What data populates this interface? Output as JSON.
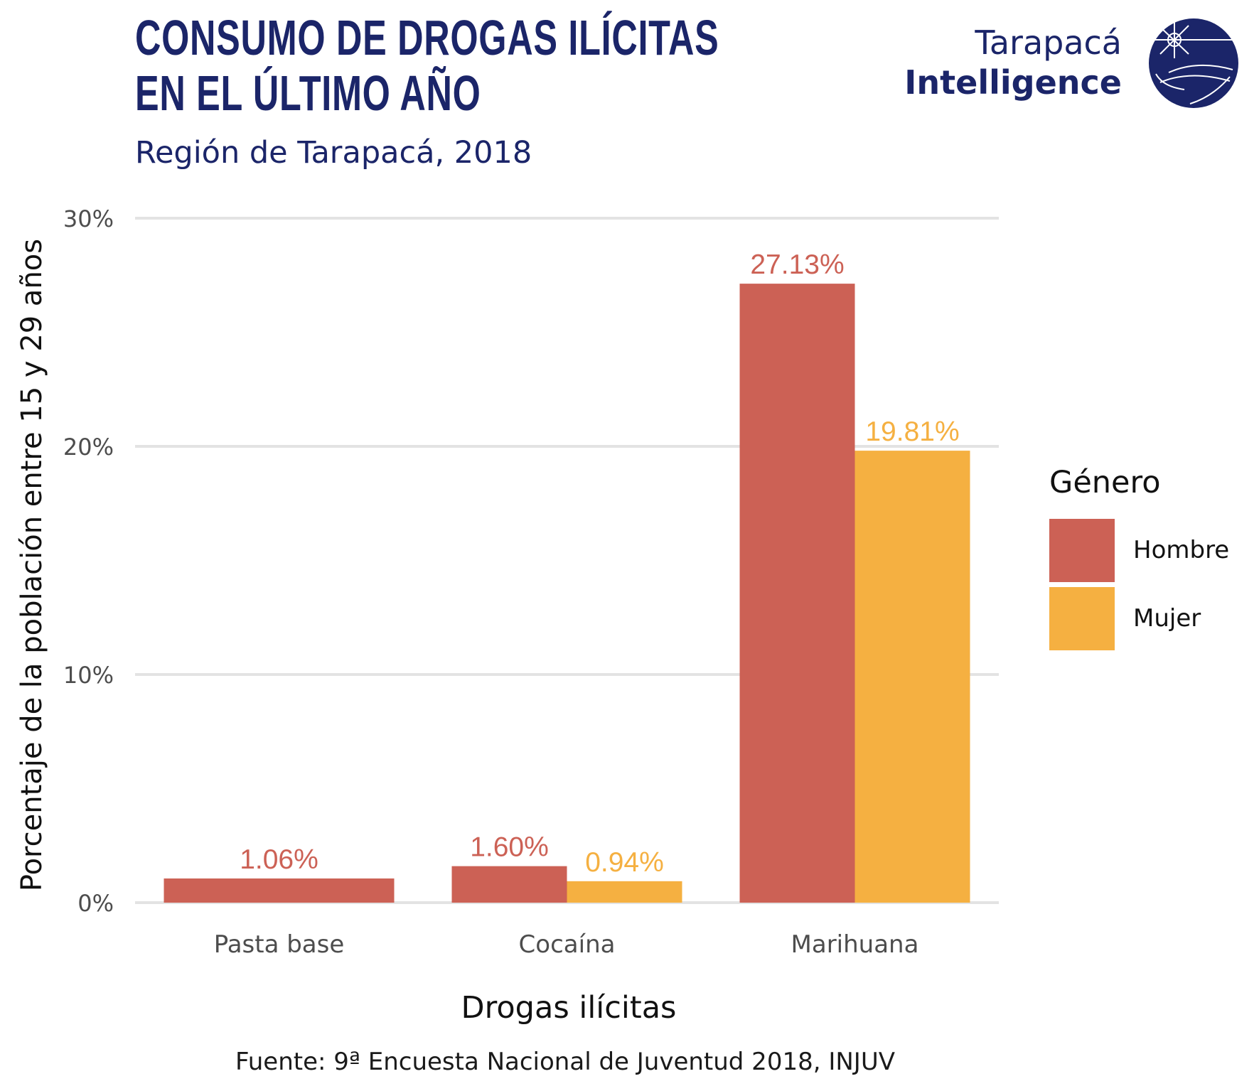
{
  "header": {
    "title_line1": "Consumo de drogas ilícitas",
    "title_line2": "en el último año",
    "subtitle": "Región de Tarapacá, 2018"
  },
  "logo": {
    "line1": "Tarapacá",
    "line2": "Intelligence",
    "icon": "globe-lighthouse-icon"
  },
  "footer": {
    "source": "Fuente: 9ª Encuesta Nacional de Juventud 2018, INJUV"
  },
  "colors": {
    "hombre": "#cc6155",
    "mujer": "#f5b041",
    "brand": "#1b2569",
    "grid": "#e3e3e3"
  },
  "chart_data": {
    "type": "bar",
    "title": "Consumo de drogas ilícitas en el último año",
    "subtitle": "Región de Tarapacá, 2018",
    "xlabel": "Drogas ilícitas",
    "ylabel": "Porcentaje de la población entre 15 y 29 años",
    "categories": [
      "Pasta base",
      "Cocaína",
      "Marihuana"
    ],
    "series": [
      {
        "name": "Hombre",
        "values": [
          1.06,
          1.6,
          27.13
        ],
        "labels": [
          "1.06%",
          "1.60%",
          "27.13%"
        ]
      },
      {
        "name": "Mujer",
        "values": [
          null,
          0.94,
          19.81
        ],
        "labels": [
          null,
          "0.94%",
          "19.81%"
        ]
      }
    ],
    "ylim": [
      0,
      30
    ],
    "yticks": [
      0,
      10,
      20,
      30
    ],
    "ytick_labels": [
      "0%",
      "10%",
      "20%",
      "30%"
    ],
    "grid": "horizontal",
    "legend": {
      "title": "Género",
      "position": "right",
      "entries": [
        "Hombre",
        "Mujer"
      ]
    }
  }
}
